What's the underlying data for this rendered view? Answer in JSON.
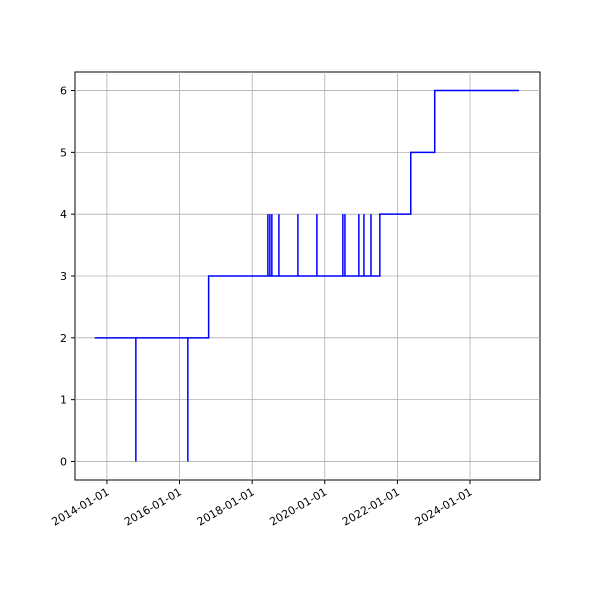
{
  "chart_data": {
    "type": "line",
    "x": [
      "2013-09-01",
      "2014-10-19",
      "2014-10-19",
      "2014-10-19",
      "2016-03-25",
      "2016-03-25",
      "2016-03-25",
      "2016-10-20",
      "2016-10-20",
      "2018-06-08",
      "2018-06-08",
      "2018-06-08",
      "2018-06-28",
      "2018-06-28",
      "2018-06-28",
      "2018-07-18",
      "2018-07-18",
      "2018-07-18",
      "2018-09-27",
      "2018-09-27",
      "2018-09-27",
      "2019-04-06",
      "2019-04-06",
      "2019-04-06",
      "2019-10-14",
      "2019-10-14",
      "2019-10-14",
      "2020-07-01",
      "2020-07-01",
      "2020-07-01",
      "2020-07-22",
      "2020-07-22",
      "2020-07-22",
      "2020-12-09",
      "2020-12-09",
      "2020-12-09",
      "2021-01-29",
      "2021-01-29",
      "2021-01-29",
      "2021-04-10",
      "2021-04-10",
      "2021-04-10",
      "2021-07-08",
      "2021-07-08",
      "2022-05-15",
      "2022-05-15",
      "2023-01-11",
      "2023-01-11",
      "2025-05-08"
    ],
    "series": [
      {
        "color": "#0000ff",
        "values": [
          2,
          2,
          0,
          2,
          2,
          0,
          2,
          2,
          3,
          3,
          4,
          3,
          3,
          4,
          3,
          3,
          4,
          3,
          3,
          4,
          3,
          3,
          4,
          3,
          3,
          4,
          3,
          3,
          4,
          3,
          3,
          4,
          3,
          3,
          4,
          3,
          3,
          4,
          3,
          3,
          4,
          3,
          3,
          4,
          4,
          5,
          5,
          6,
          6
        ]
      }
    ],
    "xlim": [
      "2013-02-14",
      "2025-12-05"
    ],
    "xticks": [
      "2014-01-01",
      "2016-01-01",
      "2018-01-01",
      "2020-01-01",
      "2022-01-01",
      "2024-01-01"
    ],
    "ylim": [
      -0.3,
      6.3
    ],
    "yticks": [
      0,
      1,
      2,
      3,
      4,
      5,
      6
    ],
    "grid": true
  }
}
